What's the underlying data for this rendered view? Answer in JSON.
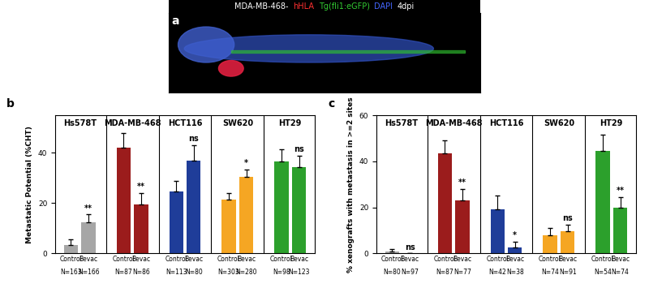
{
  "header": {
    "title_parts": [
      {
        "text": "MDA-MB-468-",
        "color": "#ffffff"
      },
      {
        "text": "hHLA",
        "color": "#ff3030"
      },
      {
        "text": "Tg(fli1:eGFP)",
        "color": "#33cc33"
      },
      {
        "text": "DAPI",
        "color": "#4466ff"
      },
      {
        "text": "4dpi",
        "color": "#ffffff"
      }
    ],
    "panel_label": "a"
  },
  "chart_data": [
    {
      "type": "bar",
      "panel_label": "b",
      "y_label": "Metastatic Potential (%CHT)",
      "categories": [
        "Control",
        "Bevac"
      ],
      "ylim": [
        0,
        55
      ],
      "yticks": [
        0,
        20,
        40
      ],
      "groups": [
        {
          "name": "Hs578T",
          "color": "#a6a6a6",
          "values": [
            3.5,
            12.5
          ],
          "errors": [
            2,
            3
          ],
          "significance": "**",
          "n": [
            "N=163",
            "N=166"
          ]
        },
        {
          "name": "MDA-MB-468",
          "color": "#9b1c1c",
          "values": [
            42,
            19.5
          ],
          "errors": [
            6,
            4.5
          ],
          "significance": "**",
          "n": [
            "N=87",
            "N=86"
          ]
        },
        {
          "name": "HCT116",
          "color": "#1f3d99",
          "values": [
            24.5,
            37
          ],
          "errors": [
            4.5,
            6
          ],
          "significance": "ns",
          "n": [
            "N=113",
            "N=80"
          ]
        },
        {
          "name": "SW620",
          "color": "#f5a623",
          "values": [
            21.5,
            30.5
          ],
          "errors": [
            2.5,
            3
          ],
          "significance": "*",
          "n": [
            "N=303",
            "N=280"
          ]
        },
        {
          "name": "HT29",
          "color": "#2ca02c",
          "values": [
            36.5,
            34.5
          ],
          "errors": [
            5,
            4.5
          ],
          "significance": "ns",
          "n": [
            "N=98",
            "N=123"
          ]
        }
      ]
    },
    {
      "type": "bar",
      "panel_label": "c",
      "y_label": "% xenografts with metastasis in >=2 sites",
      "categories": [
        "Control",
        "Bevac"
      ],
      "ylim": [
        0,
        60
      ],
      "yticks": [
        0,
        20,
        40,
        60
      ],
      "groups": [
        {
          "name": "Hs578T",
          "color": "#a6a6a6",
          "values": [
            1,
            0
          ],
          "errors": [
            1,
            0
          ],
          "significance": "ns",
          "n": [
            "N=80",
            "N=97"
          ]
        },
        {
          "name": "MDA-MB-468",
          "color": "#9b1c1c",
          "values": [
            43.5,
            23
          ],
          "errors": [
            5.5,
            5
          ],
          "significance": "**",
          "n": [
            "N=87",
            "N=77"
          ]
        },
        {
          "name": "HCT116",
          "color": "#1f3d99",
          "values": [
            19,
            2.5
          ],
          "errors": [
            6,
            2.5
          ],
          "significance": "*",
          "n": [
            "N=42",
            "N=38"
          ]
        },
        {
          "name": "SW620",
          "color": "#f5a623",
          "values": [
            8,
            9.5
          ],
          "errors": [
            3,
            3
          ],
          "significance": "ns",
          "n": [
            "N=74",
            "N=91"
          ]
        },
        {
          "name": "HT29",
          "color": "#2ca02c",
          "values": [
            44.5,
            20
          ],
          "errors": [
            7,
            4.5
          ],
          "significance": "**",
          "n": [
            "N=54",
            "N=74"
          ]
        }
      ]
    }
  ]
}
